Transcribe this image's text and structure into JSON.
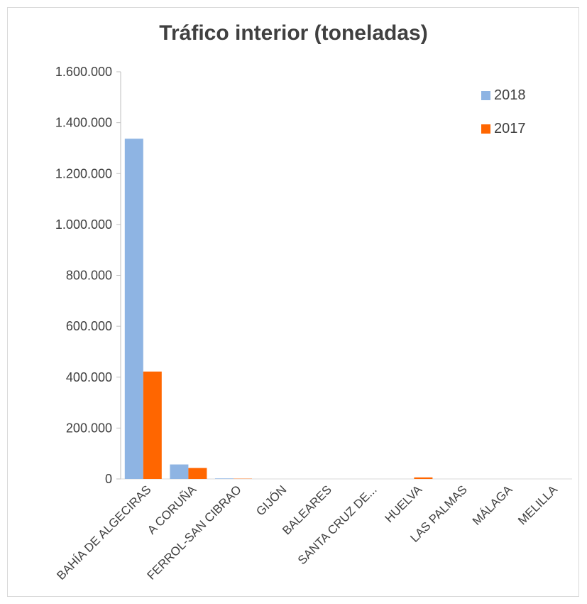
{
  "chart_data": {
    "type": "bar",
    "title": "Tráfico interior (toneladas)",
    "xlabel": "",
    "ylabel": "",
    "categories": [
      "BAHÍA DE ALGECIRAS",
      "A CORUÑA",
      "FERROL-SAN CIBRAO",
      "GIJÓN",
      "BALEARES",
      "SANTA CRUZ DE...",
      "HUELVA",
      "LAS PALMAS",
      "MÁLAGA",
      "MELILLA"
    ],
    "series": [
      {
        "name": "2018",
        "color": "#8eb4e3",
        "values": [
          1337000,
          57000,
          2000,
          0,
          0,
          0,
          0,
          0,
          0,
          0
        ]
      },
      {
        "name": "2017",
        "color": "#ff6600",
        "values": [
          422000,
          43000,
          1000,
          0,
          0,
          0,
          6000,
          0,
          0,
          0
        ]
      }
    ],
    "ylim": [
      0,
      1600000
    ],
    "yticks": [
      0,
      200000,
      400000,
      600000,
      800000,
      1000000,
      1200000,
      1400000,
      1600000
    ],
    "ytick_labels": [
      "0",
      "200.000",
      "400.000",
      "600.000",
      "800.000",
      "1.000.000",
      "1.200.000",
      "1.400.000",
      "1.600.000"
    ],
    "grid": false,
    "legend_position": "top-right"
  }
}
